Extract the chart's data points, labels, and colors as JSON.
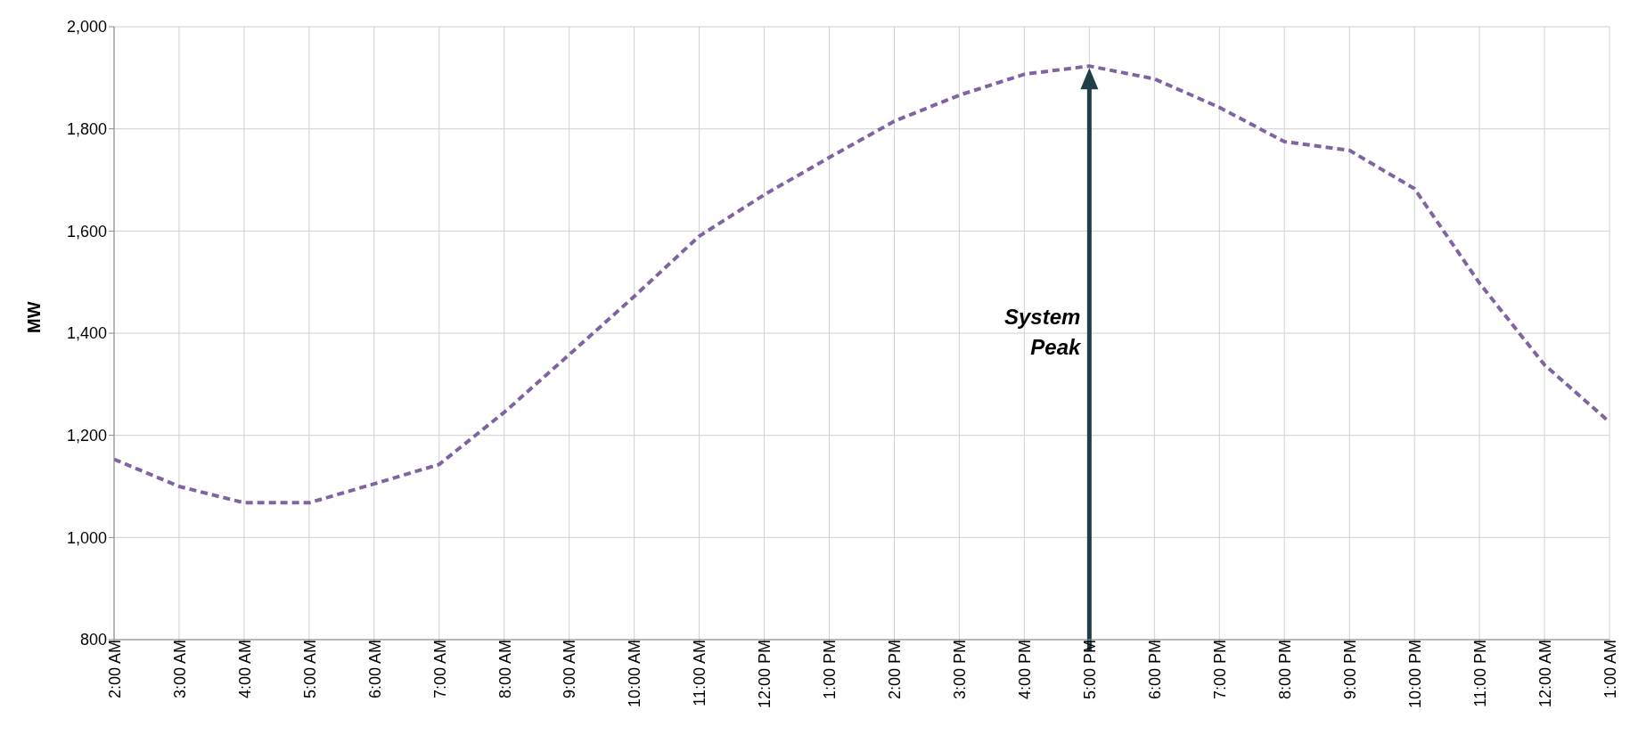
{
  "chart_data": {
    "type": "line",
    "ylabel": "MW",
    "categories": [
      "2:00 AM",
      "3:00 AM",
      "4:00 AM",
      "5:00 AM",
      "6:00 AM",
      "7:00 AM",
      "8:00 AM",
      "9:00 AM",
      "10:00 AM",
      "11:00 AM",
      "12:00 PM",
      "1:00 PM",
      "2:00 PM",
      "3:00 PM",
      "4:00 PM",
      "5:00 PM",
      "6:00 PM",
      "7:00 PM",
      "8:00 PM",
      "9:00 PM",
      "10:00 PM",
      "11:00 PM",
      "12:00 AM",
      "1:00 AM"
    ],
    "series": [
      {
        "color": "#8064a2",
        "values": [
          1153,
          1100,
          1068,
          1068,
          1105,
          1143,
          1245,
          1358,
          1472,
          1590,
          1671,
          1744,
          1815,
          1866,
          1907,
          1923,
          1898,
          1842,
          1775,
          1758,
          1683,
          1498,
          1338,
          1226
        ]
      }
    ],
    "ylim": [
      800,
      2000
    ],
    "yticks": [
      800,
      {
        "value": 1000,
        "label": "1,000"
      },
      {
        "value": 1200,
        "label": "1,200"
      },
      {
        "value": 1400,
        "label": "1,400"
      },
      {
        "value": 1600,
        "label": "1,600"
      },
      {
        "value": 1800,
        "label": "1,800"
      },
      {
        "value": 2000,
        "label": "2,000"
      }
    ],
    "grid": true,
    "legend": false,
    "marker": "none",
    "line_style": "dashed",
    "ref_lines": [
      {
        "axis": "x",
        "value": "5:00 PM",
        "label": "System Peak",
        "color": "#1f3f48"
      }
    ]
  }
}
